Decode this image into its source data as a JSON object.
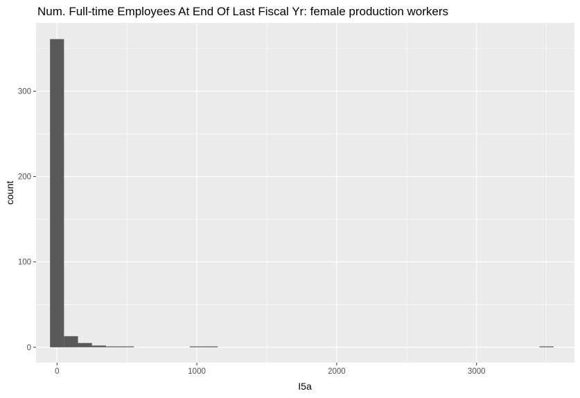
{
  "chart_data": {
    "type": "bar",
    "title": "Num. Full-time Employees At End Of Last Fiscal Yr: female production workers",
    "xlabel": "I5a",
    "ylabel": "count",
    "xlim": [
      -150,
      3700
    ],
    "ylim": [
      -18,
      380
    ],
    "x_ticks": [
      0,
      1000,
      2000,
      3000
    ],
    "x_tick_labels": [
      "0",
      "1000",
      "2000",
      "3000"
    ],
    "y_ticks": [
      0,
      100,
      200,
      300
    ],
    "y_tick_labels": [
      "0",
      "100",
      "200",
      "300"
    ],
    "grid": true,
    "bin_width": 100,
    "bins": [
      {
        "x0": -50,
        "x1": 50,
        "count": 361
      },
      {
        "x0": 50,
        "x1": 150,
        "count": 13
      },
      {
        "x0": 150,
        "x1": 250,
        "count": 5
      },
      {
        "x0": 250,
        "x1": 350,
        "count": 2
      },
      {
        "x0": 350,
        "x1": 450,
        "count": 1
      },
      {
        "x0": 450,
        "x1": 550,
        "count": 1
      },
      {
        "x0": 950,
        "x1": 1050,
        "count": 1
      },
      {
        "x0": 1050,
        "x1": 1150,
        "count": 1
      },
      {
        "x0": 3450,
        "x1": 3550,
        "count": 1
      }
    ],
    "colors": {
      "panel": "#ebebeb",
      "grid": "#ffffff",
      "bar": "#595959"
    }
  }
}
